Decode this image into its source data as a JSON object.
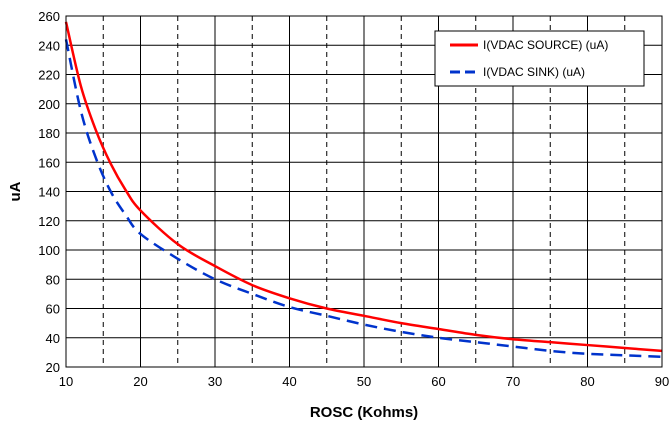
{
  "chart_data": {
    "type": "line",
    "title": "",
    "xlabel": "ROSC (Kohms)",
    "ylabel": "uA",
    "xlim": [
      10,
      90
    ],
    "ylim": [
      20,
      260
    ],
    "xticks": [
      10,
      20,
      30,
      40,
      50,
      60,
      70,
      80,
      90
    ],
    "yticks": [
      20,
      40,
      60,
      80,
      100,
      120,
      140,
      160,
      180,
      200,
      220,
      240,
      260
    ],
    "grid": "major solid, minor dashed vertical",
    "legend_position": "top-right",
    "series": [
      {
        "name": "I(VDAC SOURCE) (uA)",
        "color": "#ff0000",
        "style": "solid",
        "x": [
          10,
          12,
          14,
          16,
          18,
          20,
          25,
          30,
          35,
          40,
          45,
          50,
          55,
          60,
          65,
          70,
          75,
          80,
          85,
          90
        ],
        "y": [
          256,
          212,
          182,
          159,
          141,
          127,
          104,
          89,
          76,
          67,
          60,
          55,
          50,
          46,
          42,
          39,
          37,
          35,
          33,
          31
        ]
      },
      {
        "name": "I(VDAC SINK) (uA)",
        "color": "#0033cc",
        "style": "dashed",
        "x": [
          10,
          12,
          14,
          16,
          18,
          20,
          25,
          30,
          35,
          40,
          45,
          50,
          55,
          60,
          65,
          70,
          75,
          80,
          85,
          90
        ],
        "y": [
          244,
          195,
          163,
          140,
          124,
          111,
          94,
          80,
          70,
          61,
          55,
          49,
          44,
          40,
          37,
          34,
          31,
          29,
          28,
          27
        ]
      }
    ]
  }
}
